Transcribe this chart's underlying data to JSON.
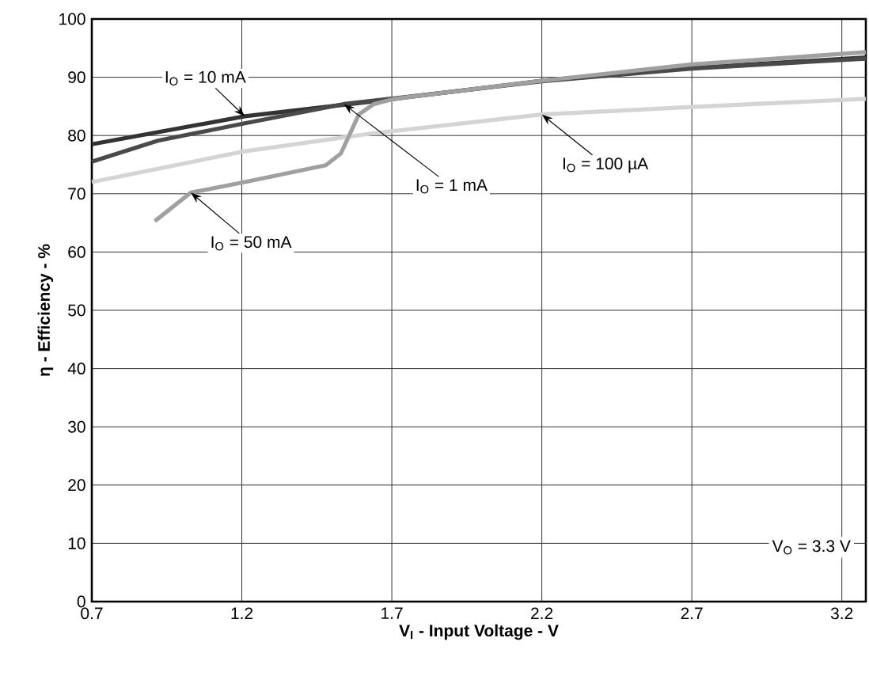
{
  "chart_data": {
    "type": "line",
    "xlabel": "**V$_{I}$ - Input Voltage - V**",
    "ylabel": "η - Efficiency - %",
    "xlim": [
      0.7,
      3.28
    ],
    "ylim": [
      0,
      100
    ],
    "xticks": [
      0.7,
      1.2,
      1.7,
      2.2,
      2.7,
      3.2
    ],
    "yticks": [
      0,
      10,
      20,
      30,
      40,
      50,
      60,
      70,
      80,
      90,
      100
    ],
    "grid": true,
    "legend": false,
    "marker": "none",
    "line_style": "solid",
    "annotations": [
      "V$_{O}$ = 3.3 V"
    ],
    "series": [
      {
        "name": "I$_{O}$ = 10 mA",
        "color": "#333333",
        "x": [
          0.7,
          1.21,
          1.71,
          2.2,
          2.7,
          3.28
        ],
        "values": [
          78.5,
          83.3,
          86.3,
          89.4,
          91.6,
          93.4
        ]
      },
      {
        "name": "I$_{O}$ = 1 mA",
        "color": "#4a4a4a",
        "x": [
          0.7,
          0.92,
          1.21,
          1.54,
          1.71,
          2.2,
          2.7,
          3.28
        ],
        "values": [
          75.5,
          79.1,
          82.1,
          85.4,
          86.4,
          89.3,
          91.5,
          93.2
        ]
      },
      {
        "name": "I$_{O}$ = 100 µA",
        "color": "#d4d4d4",
        "x": [
          0.7,
          1.21,
          1.64,
          2.2,
          2.7,
          3.28
        ],
        "values": [
          72,
          77.3,
          80.4,
          83.6,
          84.9,
          86.3
        ]
      },
      {
        "name": "I$_{O}$ = 50 mA",
        "color": "#a0a0a0",
        "x": [
          0.91,
          1.03,
          1.21,
          1.48,
          1.53,
          1.59,
          1.64,
          1.71,
          2.2,
          2.7,
          3.28
        ],
        "values": [
          65.3,
          70.2,
          72,
          74.9,
          76.9,
          83.6,
          85.4,
          86.3,
          89.4,
          92.2,
          94.3
        ]
      }
    ]
  }
}
